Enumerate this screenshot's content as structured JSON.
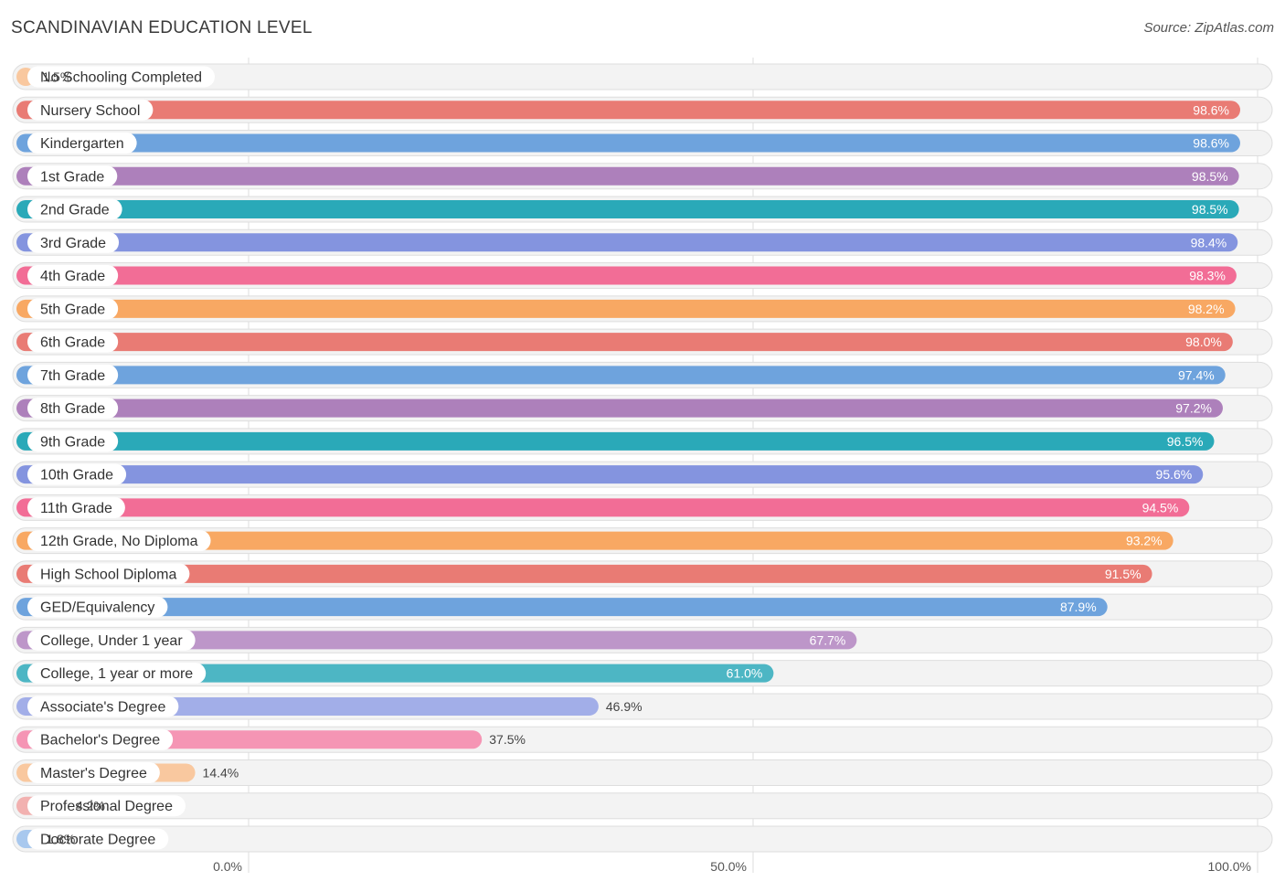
{
  "header": {
    "title": "SCANDINAVIAN EDUCATION LEVEL",
    "source": "Source: ZipAtlas.com"
  },
  "chart_data": {
    "type": "bar",
    "orientation": "horizontal",
    "title": "SCANDINAVIAN EDUCATION LEVEL",
    "xlim": [
      0,
      100
    ],
    "value_unit": "%",
    "grid": true,
    "ticks": [
      {
        "value": 0,
        "label": "0.0%"
      },
      {
        "value": 50,
        "label": "50.0%"
      },
      {
        "value": 100,
        "label": "100.0%"
      }
    ],
    "categories": [
      "No Schooling Completed",
      "Nursery School",
      "Kindergarten",
      "1st Grade",
      "2nd Grade",
      "3rd Grade",
      "4th Grade",
      "5th Grade",
      "6th Grade",
      "7th Grade",
      "8th Grade",
      "9th Grade",
      "10th Grade",
      "11th Grade",
      "12th Grade, No Diploma",
      "High School Diploma",
      "GED/Equivalency",
      "College, Under 1 year",
      "College, 1 year or more",
      "Associate's Degree",
      "Bachelor's Degree",
      "Master's Degree",
      "Professional Degree",
      "Doctorate Degree"
    ],
    "values": [
      1.5,
      98.6,
      98.6,
      98.5,
      98.5,
      98.4,
      98.3,
      98.2,
      98.0,
      97.4,
      97.2,
      96.5,
      95.6,
      94.5,
      93.2,
      91.5,
      87.9,
      67.7,
      61.0,
      46.9,
      37.5,
      14.4,
      4.2,
      1.8
    ],
    "value_labels": [
      "1.5%",
      "98.6%",
      "98.6%",
      "98.5%",
      "98.5%",
      "98.4%",
      "98.3%",
      "98.2%",
      "98.0%",
      "97.4%",
      "97.2%",
      "96.5%",
      "95.6%",
      "94.5%",
      "93.2%",
      "91.5%",
      "87.9%",
      "67.7%",
      "61.0%",
      "46.9%",
      "37.5%",
      "14.4%",
      "4.2%",
      "1.8%"
    ],
    "colors": [
      "#f9c89f",
      "#e97b74",
      "#6ea3dd",
      "#ad80bb",
      "#2aa9b8",
      "#8494df",
      "#f26d96",
      "#f8a863",
      "#e97b74",
      "#6ea3dd",
      "#ad80bb",
      "#2aa9b8",
      "#8494df",
      "#f26d96",
      "#f8a863",
      "#e97b74",
      "#6ea3dd",
      "#bd96c9",
      "#4db6c4",
      "#a2aee8",
      "#f595b4",
      "#f9c89f",
      "#f2b1b0",
      "#a8c8ee"
    ]
  }
}
